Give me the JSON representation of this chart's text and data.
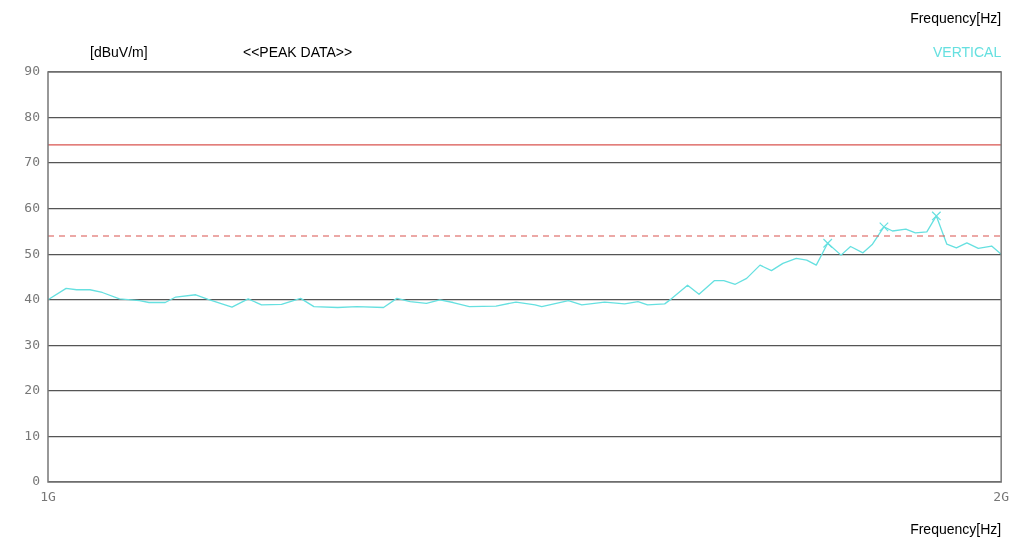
{
  "chart_data": {
    "type": "line",
    "title": "<<PEAK DATA>>",
    "xlabel": "Frequency[Hz]",
    "ylabel": "[dBuV/m]",
    "annotations": [
      "Frequency[Hz]"
    ],
    "xlim": [
      1,
      2
    ],
    "xticks": [
      {
        "value": 1,
        "label": "1G"
      },
      {
        "value": 2,
        "label": "2G"
      }
    ],
    "ylim": [
      0,
      90
    ],
    "yticks": [
      0,
      10,
      20,
      30,
      40,
      50,
      60,
      70,
      80,
      90
    ],
    "grid": "y",
    "legend": "top right",
    "ref_lines": [
      {
        "axis": "y",
        "value": 74,
        "color": "#d9534f",
        "line_style": "solid"
      },
      {
        "axis": "y",
        "value": 54,
        "color": "#d9534f",
        "line_style": "dashed"
      }
    ],
    "series": [
      {
        "name": "VERTICAL",
        "color": "#66e0e0",
        "marker": "none",
        "x": [
          1.0,
          1.019,
          1.03,
          1.044,
          1.057,
          1.075,
          1.096,
          1.106,
          1.123,
          1.134,
          1.155,
          1.168,
          1.193,
          1.21,
          1.224,
          1.245,
          1.265,
          1.279,
          1.304,
          1.324,
          1.352,
          1.366,
          1.38,
          1.397,
          1.411,
          1.425,
          1.442,
          1.47,
          1.491,
          1.511,
          1.518,
          1.546,
          1.56,
          1.584,
          1.605,
          1.619,
          1.629,
          1.647,
          1.654,
          1.671,
          1.683,
          1.699,
          1.709,
          1.721,
          1.733,
          1.747,
          1.759,
          1.771,
          1.785,
          1.796,
          1.806,
          1.818,
          1.832,
          1.842,
          1.855,
          1.865,
          1.877,
          1.886,
          1.9,
          1.91,
          1.922,
          1.932,
          1.943,
          1.953,
          1.964,
          1.976,
          1.99,
          2.0
        ],
        "values": [
          40.0,
          42.5,
          42.2,
          42.2,
          41.6,
          40.2,
          39.8,
          39.4,
          39.4,
          40.6,
          41.1,
          40.1,
          38.4,
          40.2,
          38.9,
          39.0,
          40.3,
          38.5,
          38.3,
          38.5,
          38.3,
          40.3,
          39.6,
          39.2,
          40.0,
          39.4,
          38.5,
          38.6,
          39.5,
          38.9,
          38.5,
          39.8,
          38.9,
          39.5,
          39.1,
          39.6,
          38.9,
          39.1,
          40.2,
          43.2,
          41.2,
          44.2,
          44.2,
          43.4,
          44.7,
          47.6,
          46.4,
          48.0,
          49.1,
          48.7,
          47.6,
          52.4,
          49.8,
          51.7,
          50.3,
          52.2,
          56.0,
          55.1,
          55.5,
          54.7,
          54.9,
          58.4,
          52.2,
          51.4,
          52.5,
          51.3,
          51.8,
          50.0
        ]
      },
      {
        "type": "scatter",
        "color": "#66e0e0",
        "marker": "cross",
        "x": [
          1.818,
          1.877,
          1.932
        ],
        "values": [
          52.4,
          56.0,
          58.4
        ]
      }
    ]
  }
}
